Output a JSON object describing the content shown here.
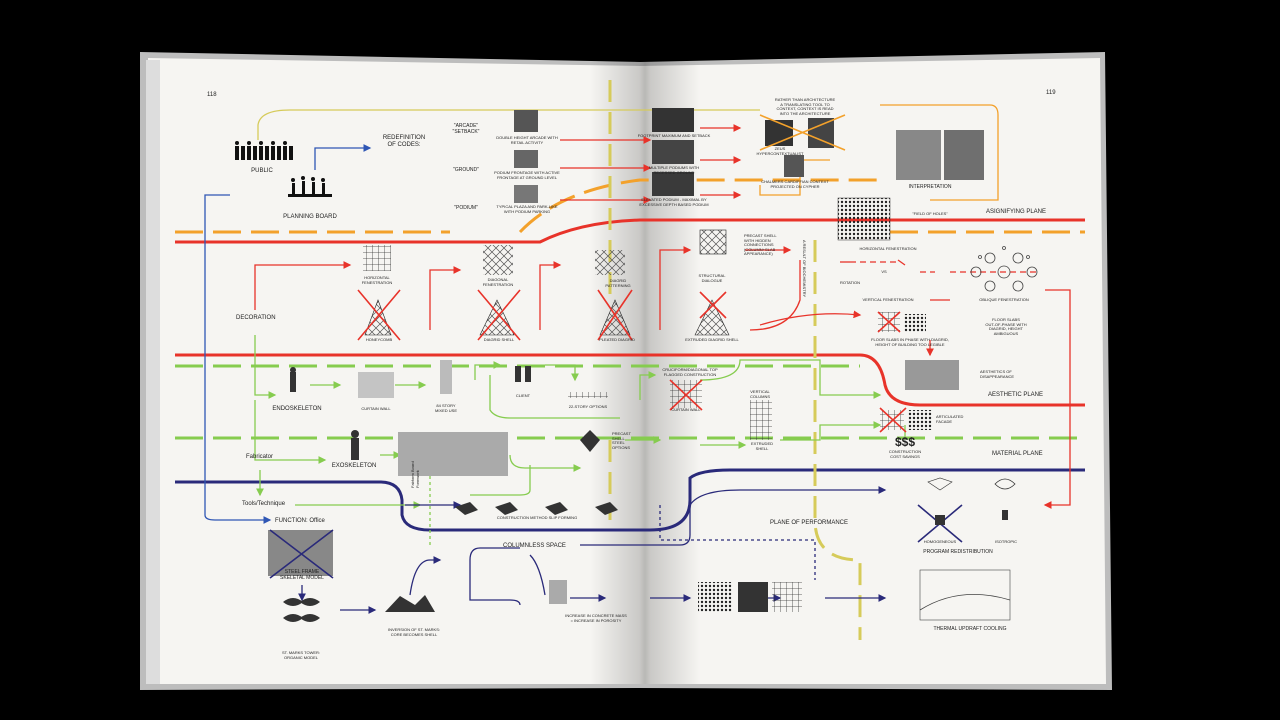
{
  "page_numbers": {
    "left": "118",
    "right": "119"
  },
  "labels": {
    "public": "PUBLIC",
    "planning_board": "PLANNING BOARD",
    "redefinition": "REDEFINITION\nOF CODES:",
    "arcade_setback": "\"ARCADE\"\n\"SETBACK\"",
    "ground": "\"GROUND\"",
    "podium": "\"PODIUM\"",
    "cap_double_height": "DOUBLE HEIGHT ARCADE WITH\nRETAIL ACTIVITY",
    "cap_podium_frontage": "PODIUM FRONTAGE WITH ACTIVE\nFRONTAGE AT GROUND LEVEL",
    "cap_typical_podium": "TYPICAL PLAZA AND PARK-LIKE\nWITH PODIUM PARKING",
    "cap_footprint": "FOOTPRINT MAXIMUM AND SETBACK",
    "cap_multiple_podiums": "MULTIPLE PODIUMS WITH\nRECESSED GROUND",
    "cap_elevated": "ELEVATED PODIUM - MAXIMAL BY\nEXCESSIVE DEPTH BASED PODIUM",
    "rather_than": "RATHER THAN ARCHITECTURE\nA TRANSLATING TOOL TO\nCONTEXT, CONTEXT IS READ\nINTO THE ARCHITECTURE",
    "zeus": "ZEUS\nHYPERCONTEXTUALIST",
    "chalmers": "CHALMERS CARDIFFIAN CONTEXT\nPROJECTED ON CYPHER",
    "interpretation": "INTERPRETATION",
    "field_of_holes": "\"FIELD OF HOLES\"",
    "asignifying_plane": "ASIGNIFYING PLANE",
    "decoration": "DECORATION",
    "horizontal_fen": "HORIZONTAL\nFENESTRATION",
    "diagonal_fen": "DIAGONAL\nFENESTRATION",
    "diagrid_patterning": "DIAGRID\nPATTERNING",
    "honeycomb": "HONEYCOMB",
    "diagrid_shell": "DIAGRID SHELL",
    "pleated_diagrid": "PLEATED DIAGRID",
    "precast_shell": "PRECAST SHELL\nWITH HIDDEN\nCONNECTIONS\n(COLUMN+SLAB\nAPPEARANCE)",
    "structural_dialogue": "STRUCTURAL\nDIALOGUE",
    "extruded_diagrid": "EXTRUDED DIAGRID SHELL",
    "a_result": "A RESULT OF BIOCHEMISTRY",
    "horizontal_fen_r": "HORIZONTAL FENESTRATION",
    "vs": "VS",
    "rotation": "ROTATION",
    "vertical_fen": "VERTICAL FENESTRATION",
    "oblique_fen": "OBLIQUE FENESTRATION",
    "floor_slabs": "FLOOR SLABS IN PHASE WITH DIAGRID,\nHEIGHT OF BUILDING TOO LEGIBLE",
    "floor_slabs_out": "FLOOR SLABS\nOUT-OF-PHASE WITH\nDIAGRID, HEIGHT\nAMBIGUOUS",
    "aesthetics": "AESTHETICS OF\nDISAPPEARANCE",
    "aesthetic_plane": "AESTHETIC PLANE",
    "endoskeleton": "ENDOSKELETON",
    "curtain_wall": "CURTAIN WALL",
    "mixed_use": "84 STORY\nMIXED USE",
    "client": "CLIENT",
    "story_options": "22-STORY OPTIONS",
    "cruciform": "CRUCIFORM/DIAGONAL TOP\nFLAGGED CONSTRUCTION",
    "curtain_wall_r": "CURTAIN WALL",
    "vertical_columns": "VERTICAL\nCOLUMNS",
    "extruded_shell": "EXTRUDED\nSHELL",
    "articulated_facade": "ARTICULATED\nFACADE",
    "dollars": "$$$",
    "construction_cost": "CONSTRUCTION\nCOST SAVINGS",
    "material_plane": "MATERIAL PLANE",
    "fabricator": "Fabricator",
    "exoskeleton": "EXOSKELETON",
    "precast_label": "PRECAST\nSHELL\nSTEEL\nOPTIONS",
    "tools": "Tools/Technique",
    "fabform": "Fabform Board\nFormwork",
    "slip_forming": "CONSTRUCTION METHOD SLIP FORMING",
    "plane_of_performance": "PLANE OF PERFORMANCE",
    "homogeneous": "HOMOGENEOUS",
    "isotropic": "ISOTROPIC",
    "program_redistribution": "PROGRAM REDISTRIBUTION",
    "function_office": "FUNCTION: Office",
    "steel_frame": "STEEL FRAME\nSKELETAL MODEL",
    "columnless": "COLUMNLESS SPACE",
    "st_marks": "ST. MARKS TOWER:\nORGANIC MODEL",
    "inversion": "INVERSION OF ST. MARKS:\nCORE BECOMES SHELL",
    "increase": "INCREASE IN CONCRETE MASS\n= INCREASE IN POROSITY",
    "thermal": "THERMAL UPDRAFT COOLING"
  },
  "colors": {
    "red": "#e8332a",
    "orange": "#f3a12b",
    "green": "#86cc4f",
    "navy": "#2a2a7a",
    "yellow": "#d6cb5a",
    "blue": "#2f56b4",
    "paper": "#f6f5f2",
    "black": "#000000"
  }
}
